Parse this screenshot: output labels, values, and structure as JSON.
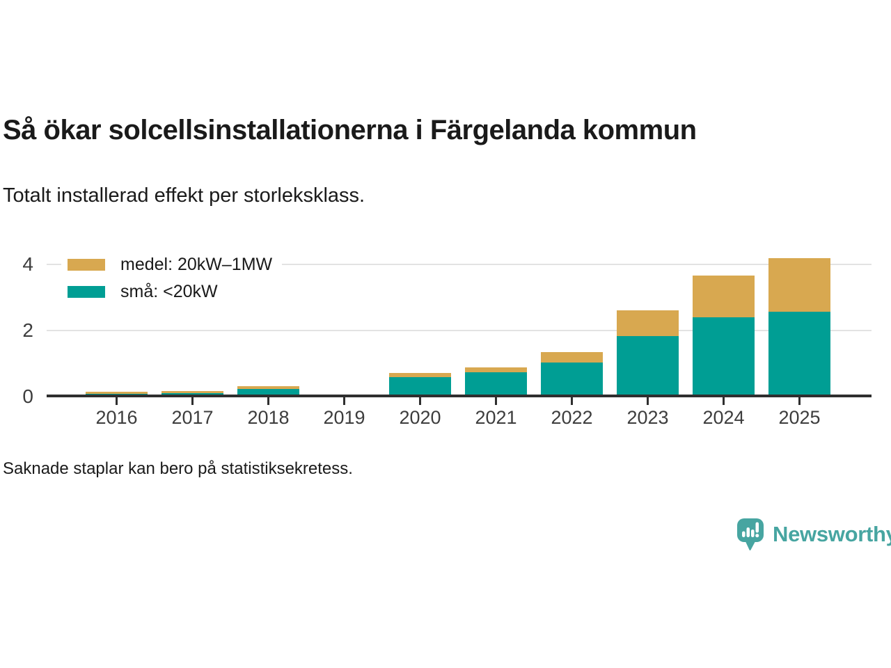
{
  "header": {
    "title": "Så ökar solcellsinstallationerna i Färgelanda kommun",
    "subtitle": "Totalt installerad effekt per storleksklass."
  },
  "footnote": "Saknade staplar kan bero på statistiksekretess.",
  "brand": {
    "name": "Newsworthy",
    "color": "#47a5a1",
    "icon": "speech-bubble-bar-chart-icon"
  },
  "chart_data": {
    "type": "bar",
    "stacked": true,
    "title": "Så ökar solcellsinstallationerna i Färgelanda kommun",
    "subtitle": "Totalt installerad effekt per storleksklass.",
    "categories": [
      "2016",
      "2017",
      "2018",
      "2019",
      "2020",
      "2021",
      "2022",
      "2023",
      "2024",
      "2025"
    ],
    "series": [
      {
        "name": "medel: 20kW–1MW",
        "color": "#d8a850",
        "values": [
          0.06,
          0.06,
          0.08,
          null,
          0.13,
          0.15,
          0.32,
          0.78,
          1.28,
          1.62
        ]
      },
      {
        "name": "små: <20kW",
        "color": "#009e94",
        "values": [
          0.08,
          0.1,
          0.24,
          null,
          0.59,
          0.74,
          1.03,
          1.84,
          2.39,
          2.57
        ]
      }
    ],
    "yticks": [
      0,
      2,
      4
    ],
    "ylim": [
      0,
      4.4
    ],
    "xlabel": "",
    "ylabel": "",
    "grid": "horizontal",
    "legend_position": "top-left",
    "axis_color": "#2f2f2f",
    "grid_color": "#e3e3e3",
    "label_color": "#3d3d3d"
  }
}
